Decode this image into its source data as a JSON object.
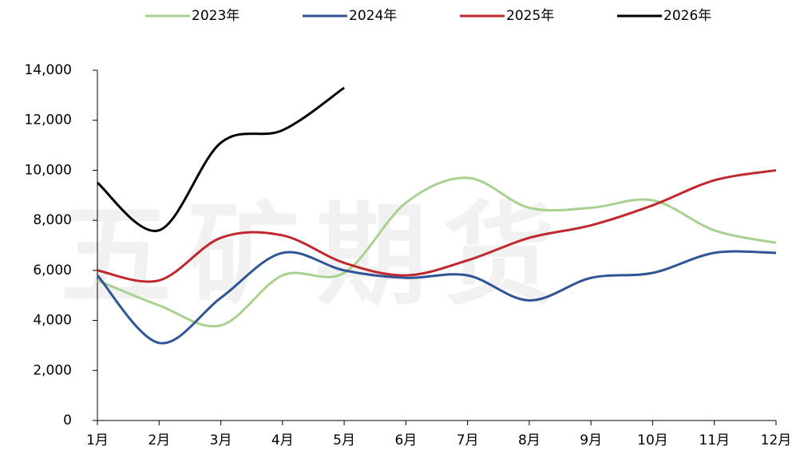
{
  "chart_data": {
    "type": "line",
    "watermark": "五矿期货",
    "categories": [
      "1月",
      "2月",
      "3月",
      "4月",
      "5月",
      "6月",
      "7月",
      "8月",
      "9月",
      "10月",
      "11月",
      "12月"
    ],
    "series": [
      {
        "name": "2023年",
        "color": "#a9d18e",
        "values": [
          5600,
          4600,
          3800,
          5800,
          5900,
          8700,
          9700,
          8500,
          8500,
          8800,
          7600,
          7100
        ]
      },
      {
        "name": "2024年",
        "color": "#2f5597",
        "values": [
          5800,
          3100,
          4900,
          6700,
          6000,
          5700,
          5800,
          4800,
          5700,
          5900,
          6700,
          6700
        ]
      },
      {
        "name": "2025年",
        "color": "#c0282d",
        "values": [
          6000,
          5600,
          7300,
          7400,
          6300,
          5800,
          6400,
          7300,
          7800,
          8600,
          9600,
          10000
        ]
      },
      {
        "name": "2026年",
        "color": "#000000",
        "values": [
          9500,
          7600,
          11100,
          11600,
          13300,
          null,
          null,
          null,
          null,
          null,
          null,
          null
        ]
      }
    ],
    "ylim": [
      0,
      14000
    ],
    "yticks": [
      0,
      {
        "value": 2000,
        "label": "2,000"
      },
      {
        "value": 4000,
        "label": "4,000"
      },
      {
        "value": 6000,
        "label": "6,000"
      },
      {
        "value": 8000,
        "label": "8,000"
      },
      {
        "value": 10000,
        "label": "10,000"
      },
      {
        "value": 12000,
        "label": "12,000"
      },
      {
        "value": 14000,
        "label": "14,000"
      }
    ],
    "legend": "top"
  }
}
